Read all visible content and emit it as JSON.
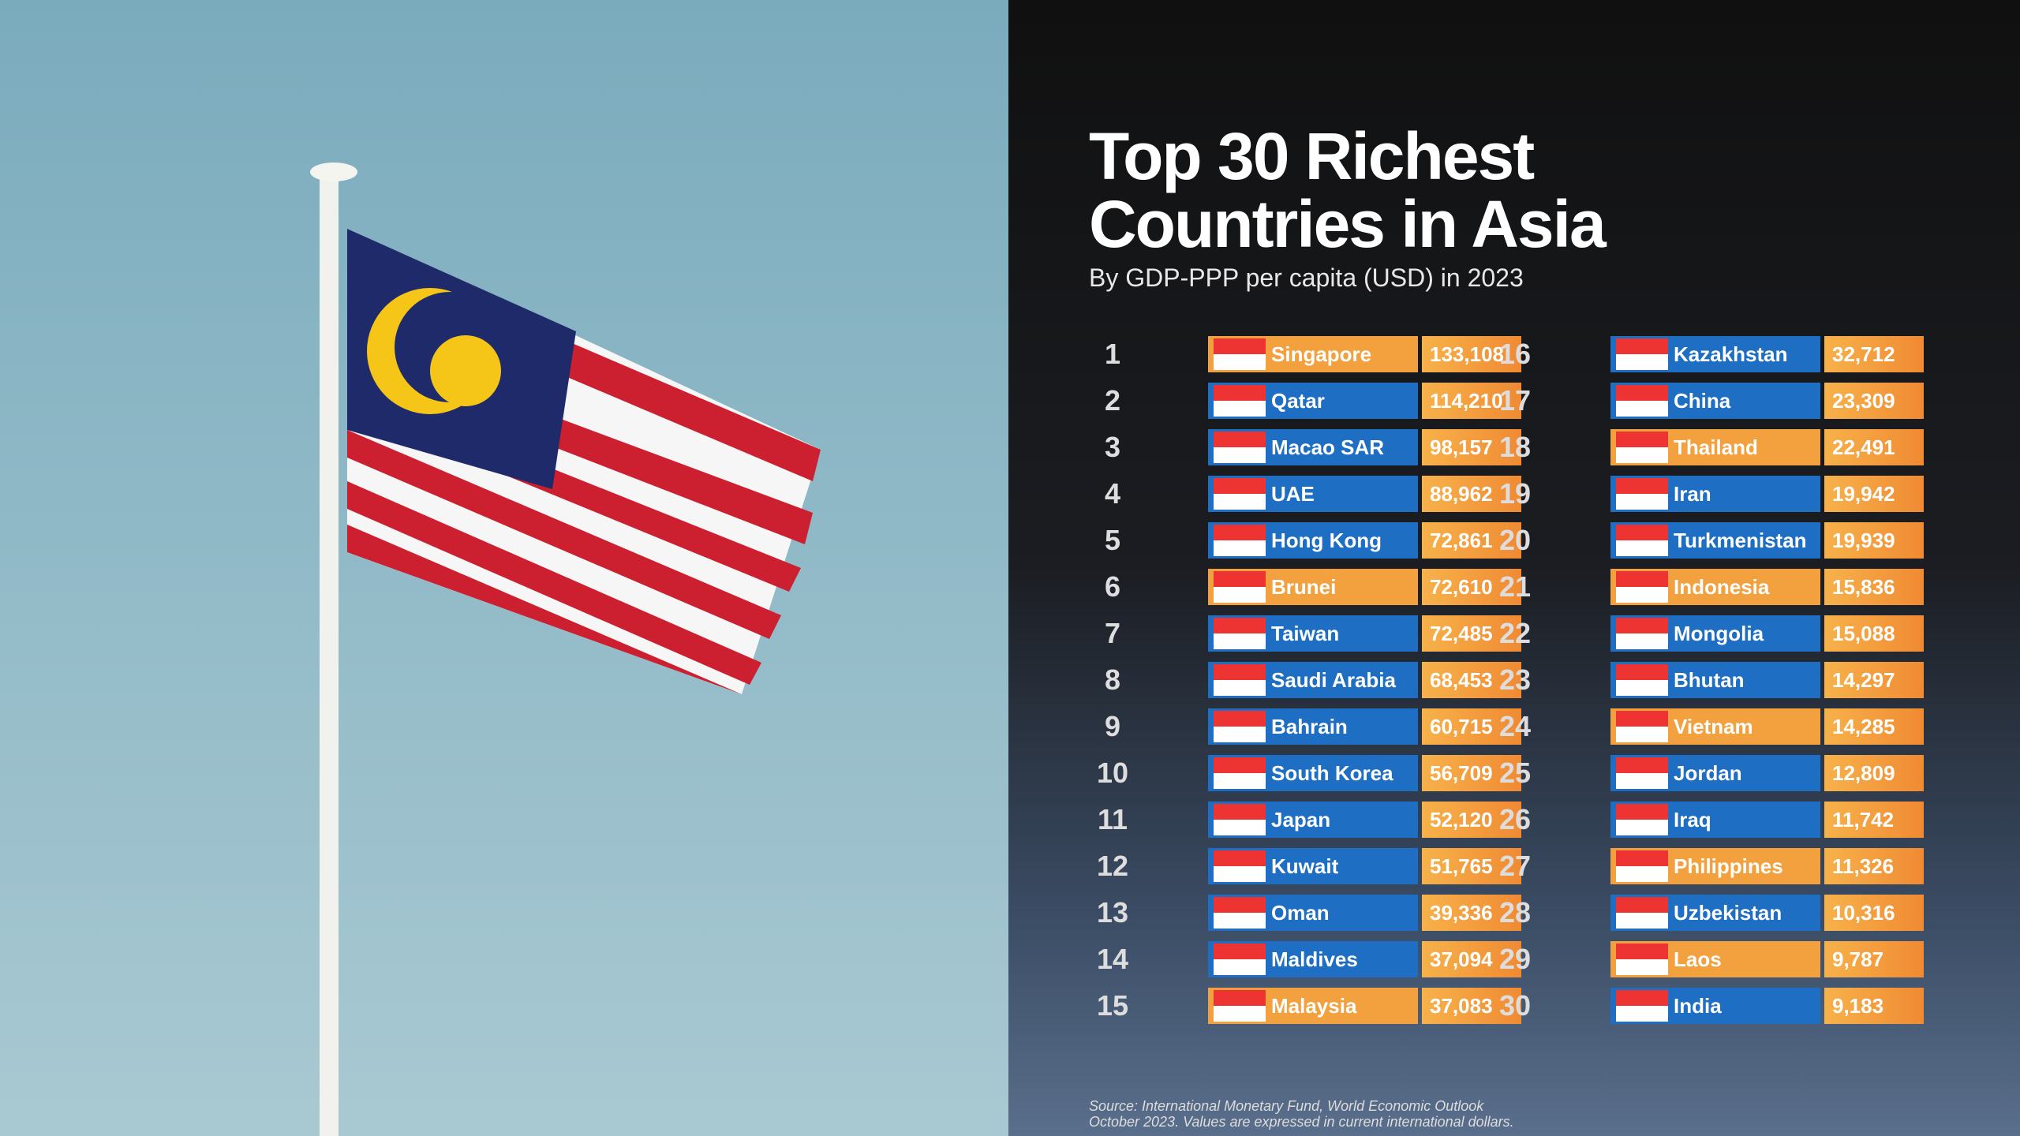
{
  "header": {
    "title_line1": "Top 30 Richest",
    "title_line2": "Countries in Asia",
    "subtitle": "By GDP-PPP per capita (USD) in 2023"
  },
  "table": {
    "rows": [
      {
        "rank": 1,
        "country": "Singapore",
        "value": "133,108",
        "color": "#f3a13f"
      },
      {
        "rank": 2,
        "country": "Qatar",
        "value": "114,210",
        "color": "#1e6fc4"
      },
      {
        "rank": 3,
        "country": "Macao SAR",
        "value": "98,157",
        "color": "#1e6fc4"
      },
      {
        "rank": 4,
        "country": "UAE",
        "value": "88,962",
        "color": "#1e6fc4"
      },
      {
        "rank": 5,
        "country": "Hong Kong",
        "value": "72,861",
        "color": "#1e6fc4"
      },
      {
        "rank": 6,
        "country": "Brunei",
        "value": "72,610",
        "color": "#f3a13f"
      },
      {
        "rank": 7,
        "country": "Taiwan",
        "value": "72,485",
        "color": "#1e6fc4"
      },
      {
        "rank": 8,
        "country": "Saudi Arabia",
        "value": "68,453",
        "color": "#1e6fc4"
      },
      {
        "rank": 9,
        "country": "Bahrain",
        "value": "60,715",
        "color": "#1e6fc4"
      },
      {
        "rank": 10,
        "country": "South Korea",
        "value": "56,709",
        "color": "#1e6fc4"
      },
      {
        "rank": 11,
        "country": "Japan",
        "value": "52,120",
        "color": "#1e6fc4"
      },
      {
        "rank": 12,
        "country": "Kuwait",
        "value": "51,765",
        "color": "#1e6fc4"
      },
      {
        "rank": 13,
        "country": "Oman",
        "value": "39,336",
        "color": "#1e6fc4"
      },
      {
        "rank": 14,
        "country": "Maldives",
        "value": "37,094",
        "color": "#1e6fc4"
      },
      {
        "rank": 15,
        "country": "Malaysia",
        "value": "37,083",
        "color": "#f3a13f"
      },
      {
        "rank": 16,
        "country": "Kazakhstan",
        "value": "32,712",
        "color": "#1e6fc4"
      },
      {
        "rank": 17,
        "country": "China",
        "value": "23,309",
        "color": "#1e6fc4"
      },
      {
        "rank": 18,
        "country": "Thailand",
        "value": "22,491",
        "color": "#f3a13f"
      },
      {
        "rank": 19,
        "country": "Iran",
        "value": "19,942",
        "color": "#1e6fc4"
      },
      {
        "rank": 20,
        "country": "Turkmenistan",
        "value": "19,939",
        "color": "#1e6fc4"
      },
      {
        "rank": 21,
        "country": "Indonesia",
        "value": "15,836",
        "color": "#f3a13f"
      },
      {
        "rank": 22,
        "country": "Mongolia",
        "value": "15,088",
        "color": "#1e6fc4"
      },
      {
        "rank": 23,
        "country": "Bhutan",
        "value": "14,297",
        "color": "#1e6fc4"
      },
      {
        "rank": 24,
        "country": "Vietnam",
        "value": "14,285",
        "color": "#f3a13f"
      },
      {
        "rank": 25,
        "country": "Jordan",
        "value": "12,809",
        "color": "#1e6fc4"
      },
      {
        "rank": 26,
        "country": "Iraq",
        "value": "11,742",
        "color": "#1e6fc4"
      },
      {
        "rank": 27,
        "country": "Philippines",
        "value": "11,326",
        "color": "#f3a13f"
      },
      {
        "rank": 28,
        "country": "Uzbekistan",
        "value": "10,316",
        "color": "#1e6fc4"
      },
      {
        "rank": 29,
        "country": "Laos",
        "value": "9,787",
        "color": "#f3a13f"
      },
      {
        "rank": 30,
        "country": "India",
        "value": "9,183",
        "color": "#1e6fc4"
      }
    ]
  },
  "footer": {
    "source_line1": "Source: International Monetary Fund, World Economic Outlook",
    "source_line2": "October 2023. Values are expressed in current international dollars."
  }
}
